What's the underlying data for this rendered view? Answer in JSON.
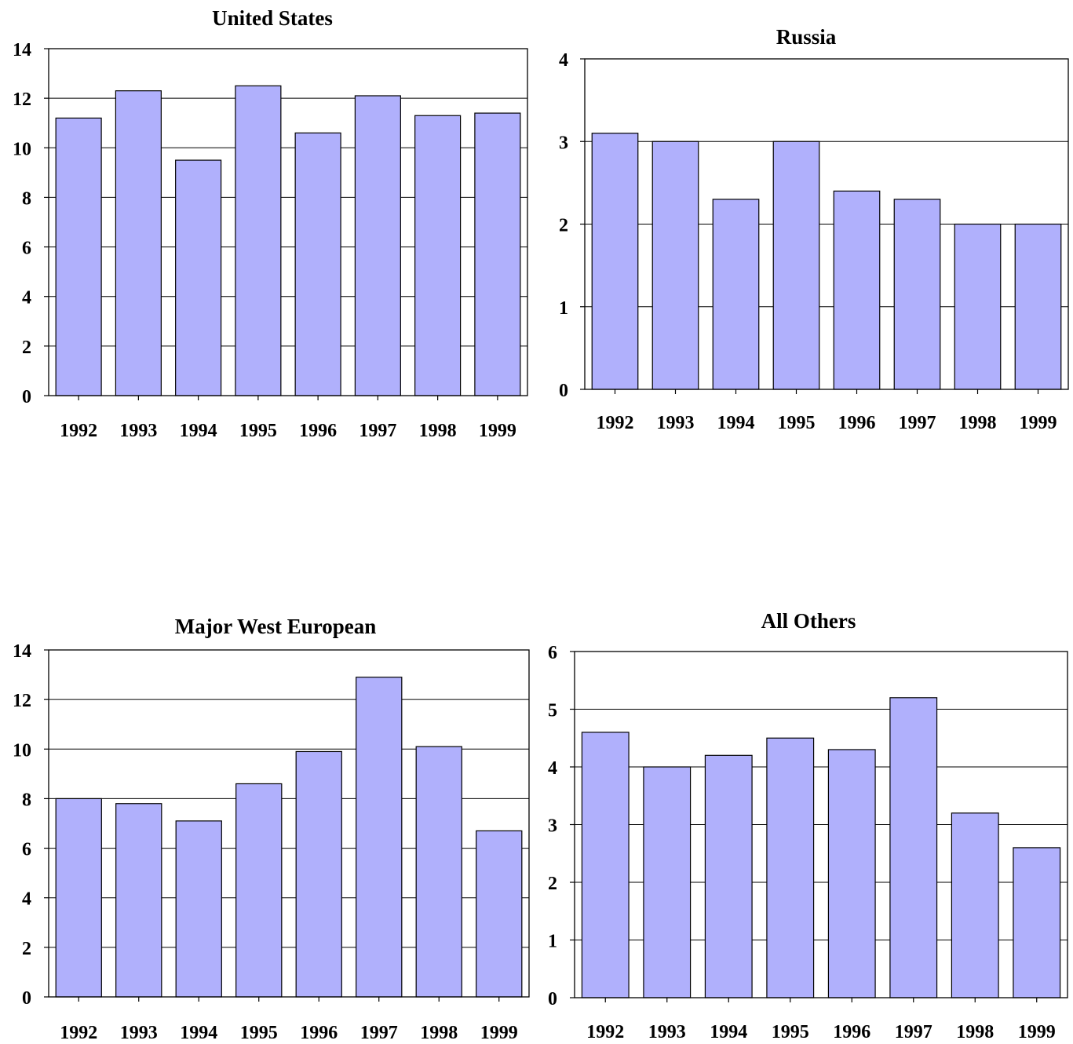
{
  "chart_data": [
    {
      "type": "bar",
      "title": "United States",
      "categories": [
        "1992",
        "1993",
        "1994",
        "1995",
        "1996",
        "1997",
        "1998",
        "1999"
      ],
      "values": [
        11.2,
        12.3,
        9.5,
        12.5,
        10.6,
        12.1,
        11.3,
        11.4
      ],
      "ylim": [
        0,
        14
      ],
      "yticks": [
        "0",
        "2",
        "4",
        "6",
        "8",
        "10",
        "12",
        "14"
      ],
      "grid": true,
      "color": "#b0b0fc"
    },
    {
      "type": "bar",
      "title": "Russia",
      "categories": [
        "1992",
        "1993",
        "1994",
        "1995",
        "1996",
        "1997",
        "1998",
        "1999"
      ],
      "values": [
        3.1,
        3.0,
        2.3,
        3.0,
        2.4,
        2.3,
        2.0,
        2.0
      ],
      "ylim": [
        0,
        4
      ],
      "yticks": [
        "0",
        "1",
        "2",
        "3",
        "4"
      ],
      "grid": true,
      "color": "#b0b0fc"
    },
    {
      "type": "bar",
      "title": "Major West European",
      "categories": [
        "1992",
        "1993",
        "1994",
        "1995",
        "1996",
        "1997",
        "1998",
        "1999"
      ],
      "values": [
        8.0,
        7.8,
        7.1,
        8.6,
        9.9,
        12.9,
        10.1,
        6.7
      ],
      "ylim": [
        0,
        14
      ],
      "yticks": [
        "0",
        "2",
        "4",
        "6",
        "8",
        "10",
        "12",
        "14"
      ],
      "grid": true,
      "color": "#b0b0fc"
    },
    {
      "type": "bar",
      "title": "All Others",
      "categories": [
        "1992",
        "1993",
        "1994",
        "1995",
        "1996",
        "1997",
        "1998",
        "1999"
      ],
      "values": [
        4.6,
        4.0,
        4.2,
        4.5,
        4.3,
        5.2,
        3.2,
        2.6
      ],
      "ylim": [
        0,
        6
      ],
      "yticks": [
        "0",
        "1",
        "2",
        "3",
        "4",
        "5",
        "6"
      ],
      "grid": true,
      "color": "#b0b0fc"
    }
  ]
}
